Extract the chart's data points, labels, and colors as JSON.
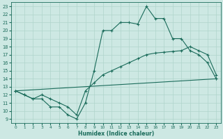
{
  "xlabel": "Humidex (Indice chaleur)",
  "xlim": [
    -0.5,
    23.5
  ],
  "ylim": [
    8.5,
    23.5
  ],
  "xticks": [
    0,
    1,
    2,
    3,
    4,
    5,
    6,
    7,
    8,
    9,
    10,
    11,
    12,
    13,
    14,
    15,
    16,
    17,
    18,
    19,
    20,
    21,
    22,
    23
  ],
  "yticks": [
    9,
    10,
    11,
    12,
    13,
    14,
    15,
    16,
    17,
    18,
    19,
    20,
    21,
    22,
    23
  ],
  "line_color": "#1a6b5a",
  "bg_color": "#cde8e3",
  "grid_color": "#afd4cc",
  "line1_x": [
    0,
    1,
    2,
    3,
    4,
    5,
    6,
    7,
    8,
    9,
    10,
    11,
    12,
    13,
    14,
    15,
    16,
    17,
    18,
    19,
    20,
    21,
    22,
    23
  ],
  "line1_y": [
    12.5,
    12.0,
    11.5,
    11.5,
    10.5,
    10.5,
    9.5,
    9.0,
    11.0,
    15.0,
    20.0,
    20.0,
    21.0,
    21.0,
    20.8,
    23.0,
    21.5,
    21.5,
    19.0,
    19.0,
    17.5,
    17.0,
    16.0,
    14.0
  ],
  "line2_x": [
    0,
    1,
    2,
    3,
    4,
    5,
    6,
    7,
    8,
    9,
    10,
    11,
    12,
    13,
    14,
    15,
    16,
    17,
    18,
    19,
    20,
    21,
    22,
    23
  ],
  "line2_y": [
    12.5,
    12.0,
    11.5,
    12.0,
    11.5,
    11.0,
    10.5,
    9.5,
    12.5,
    13.5,
    14.5,
    15.0,
    15.5,
    16.0,
    16.5,
    17.0,
    17.2,
    17.3,
    17.4,
    17.5,
    18.0,
    17.5,
    17.0,
    14.5
  ],
  "line3_x": [
    0,
    23
  ],
  "line3_y": [
    12.5,
    14.0
  ]
}
